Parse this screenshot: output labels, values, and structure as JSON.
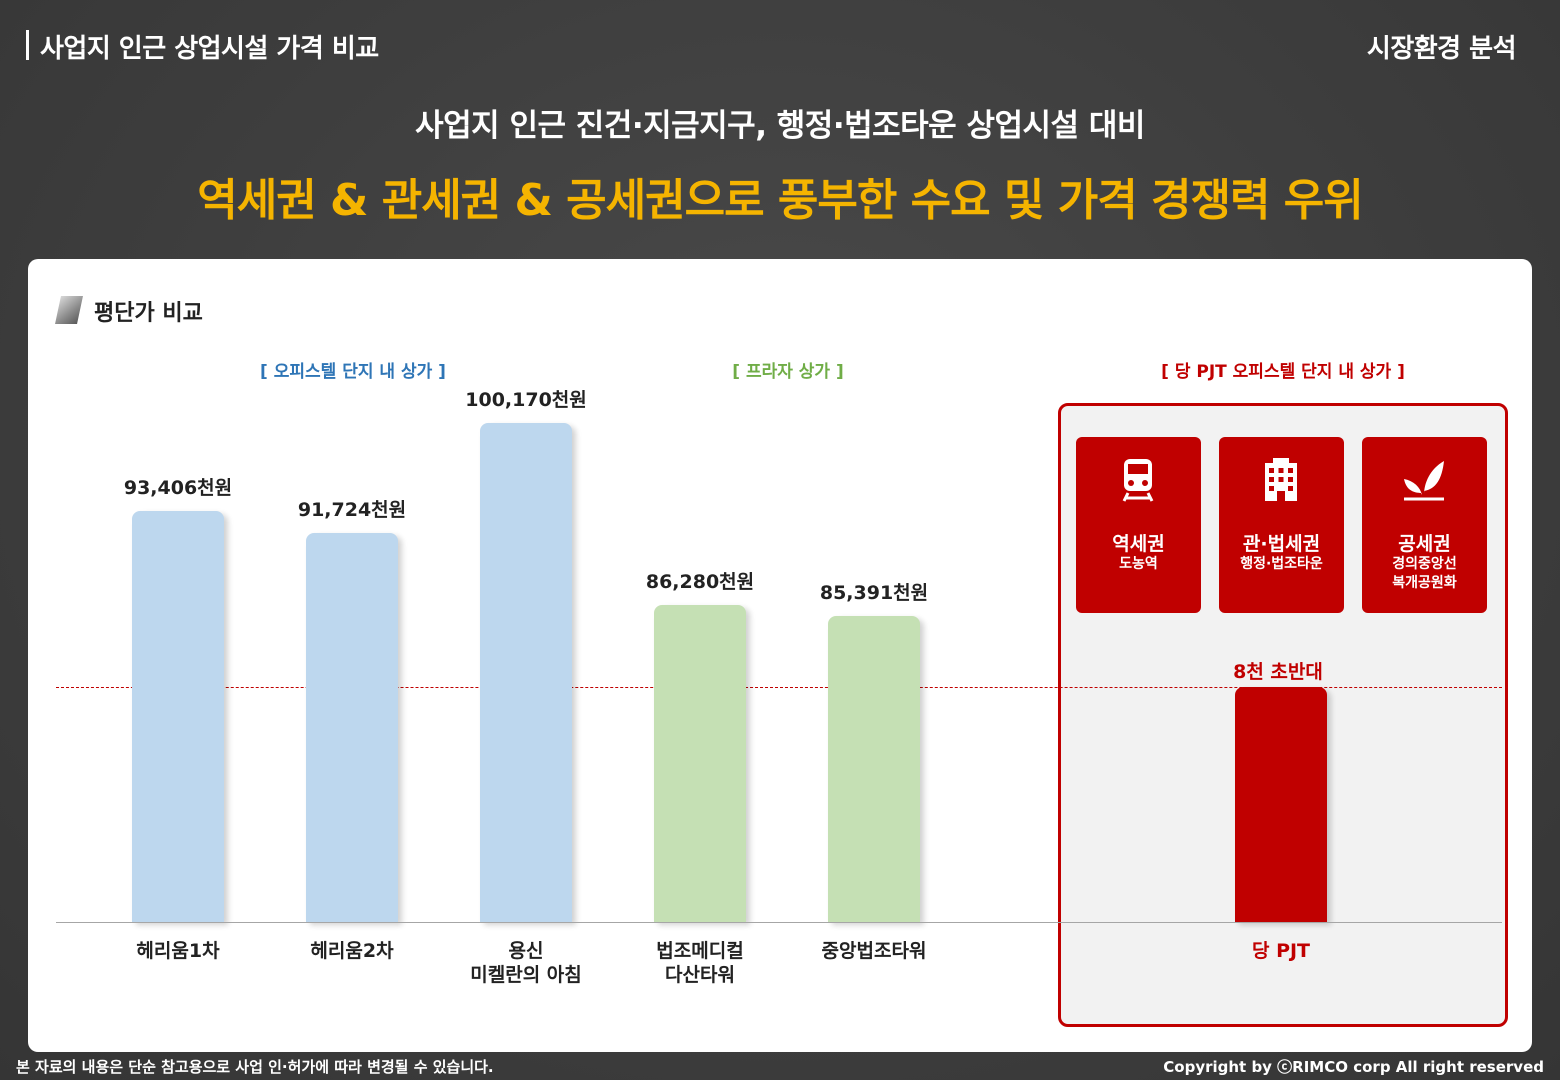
{
  "header": {
    "title": "사업지 인근 상업시설 가격 비교",
    "section": "시장환경 분석"
  },
  "subtitle": "사업지 인근 진건·지금지구, 행정·법조타운 상업시설 대비",
  "headline": "역세권 & 관세권 & 공세권으로 풍부한 수요 및 가격 경쟁력 우위",
  "panel": {
    "title": "평단가 비교"
  },
  "groups": {
    "officetel": "[ 오피스텔 단지 내 상가 ]",
    "plaza": "[ 프라자 상가 ]",
    "pjt": "[ 당 PJT 오피스텔 단지 내 상가 ]"
  },
  "tiles": [
    {
      "name": "역세권",
      "sub": "도농역",
      "icon": "train-icon"
    },
    {
      "name": "관·법세권",
      "sub": "행정·법조타운",
      "icon": "office-building-icon"
    },
    {
      "name": "공세권",
      "sub": "경의중앙선\n복개공원화",
      "icon": "leaf-icon"
    }
  ],
  "pjt_price_label": "8천 초반대",
  "colors": {
    "officetel": "#bdd7ee",
    "plaza": "#c5e0b4",
    "pjt": "#c00000",
    "headline": "#f5b400"
  },
  "chart_data": {
    "type": "bar",
    "title": "평단가 비교",
    "unit": "천원",
    "categories": [
      "헤리움1차",
      "헤리움2차",
      "용신\n미켈란의 아침",
      "법조메디컬\n다산타워",
      "중앙법조타워",
      "당 PJT"
    ],
    "values": [
      93406,
      91724,
      100170,
      86280,
      85391,
      80000
    ],
    "value_labels": [
      "93,406천원",
      "91,724천원",
      "100,170천원",
      "86,280천원",
      "85,391천원",
      "8천 초반대"
    ],
    "groups": [
      "오피스텔 단지 내 상가",
      "오피스텔 단지 내 상가",
      "오피스텔 단지 내 상가",
      "프라자 상가",
      "프라자 상가",
      "당 PJT 오피스텔 단지 내 상가"
    ],
    "reference_line": 80000,
    "grid": false,
    "legend": "none"
  },
  "footer": {
    "disclaimer": "본 자료의 내용은 단순 참고용으로 사업 인·허가에 따라 변경될 수 있습니다.",
    "copyright": "Copyright by ⓒRIMCO corp All right reserved"
  }
}
